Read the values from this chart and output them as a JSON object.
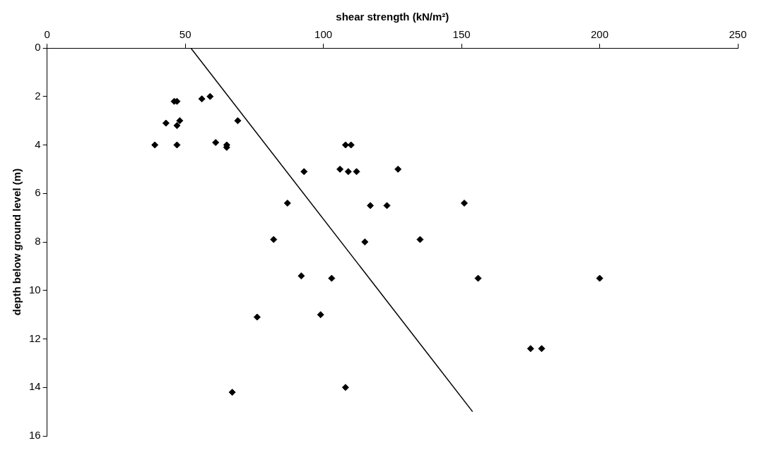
{
  "chart_data": {
    "type": "scatter",
    "xlabel": "shear strength (kN/m²)",
    "ylabel": "depth below ground level (m)",
    "xlim": [
      0,
      250
    ],
    "xticks": [
      0,
      50,
      100,
      150,
      200,
      250
    ],
    "ylim": [
      16,
      0
    ],
    "yticks": [
      0,
      2,
      4,
      6,
      8,
      10,
      12,
      14,
      16
    ],
    "grid": false,
    "legend": false,
    "series": [
      {
        "type": "scatter",
        "marker": "diamond",
        "color": "#000000",
        "x": [
          46,
          47,
          56,
          59,
          43,
          48,
          47,
          69,
          39,
          47,
          61,
          65,
          65,
          108,
          110,
          93,
          106,
          109,
          112,
          127,
          87,
          117,
          123,
          151,
          82,
          115,
          135,
          92,
          103,
          156,
          200,
          76,
          99,
          175,
          179,
          67,
          108
        ],
        "values": [
          2.2,
          2.2,
          2.1,
          2.0,
          3.1,
          3.0,
          3.2,
          3.0,
          4.0,
          4.0,
          3.9,
          4.0,
          4.1,
          4.0,
          4.0,
          5.1,
          5.0,
          5.1,
          5.1,
          5.0,
          6.4,
          6.5,
          6.5,
          6.4,
          7.9,
          8.0,
          7.9,
          9.4,
          9.5,
          9.5,
          9.5,
          11.1,
          11.0,
          12.4,
          12.4,
          14.2,
          14.0
        ]
      },
      {
        "type": "line",
        "marker": "none",
        "color": "#000000",
        "x": [
          52,
          154
        ],
        "values": [
          0,
          15
        ]
      }
    ]
  }
}
